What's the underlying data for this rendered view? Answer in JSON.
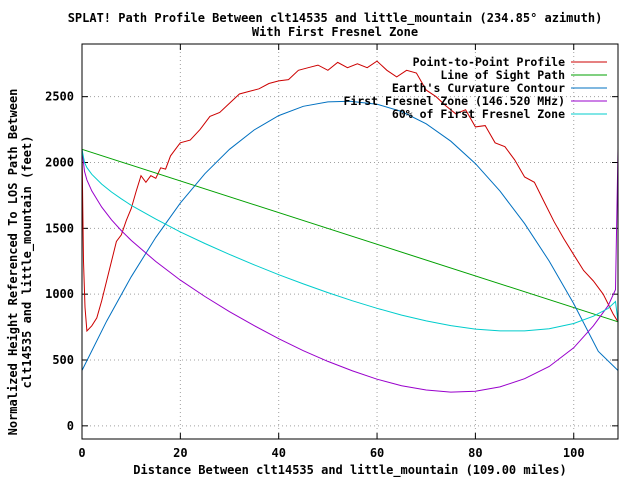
{
  "chart_data": {
    "type": "line",
    "title": "SPLAT! Path Profile Between clt14535 and little_mountain (234.85° azimuth)",
    "subtitle": "With First Fresnel Zone",
    "xlabel": "Distance Between clt14535 and little_mountain (109.00 miles)",
    "ylabel_line1": "Normalized Height Referenced To LOS Path Between",
    "ylabel_line2": "clt14535 and little_mountain (feet)",
    "xlim": [
      0,
      109
    ],
    "ylim": [
      -100,
      2900
    ],
    "x_ticks": [
      0,
      20,
      40,
      60,
      80,
      100
    ],
    "y_ticks": [
      0,
      500,
      1000,
      1500,
      2000,
      2500
    ],
    "grid": true,
    "legend_position": "top-right",
    "series": [
      {
        "name": "Point-to-Point Profile",
        "color": "#cc0000",
        "x": [
          0,
          0.3,
          0.6,
          1,
          2,
          3,
          4,
          5,
          6,
          7,
          8,
          9,
          10,
          11,
          12,
          13,
          14,
          15,
          16,
          17,
          18,
          19,
          20,
          22,
          24,
          26,
          28,
          30,
          32,
          34,
          36,
          38,
          40,
          42,
          44,
          46,
          48,
          50,
          52,
          54,
          56,
          58,
          60,
          62,
          64,
          66,
          68,
          70,
          72,
          74,
          76,
          78,
          80,
          82,
          84,
          86,
          88,
          90,
          92,
          94,
          96,
          98,
          100,
          102,
          104,
          106,
          108,
          109
        ],
        "values": [
          2100,
          1250,
          900,
          720,
          760,
          820,
          950,
          1100,
          1250,
          1400,
          1450,
          1560,
          1650,
          1780,
          1900,
          1850,
          1900,
          1880,
          1960,
          1950,
          2050,
          2100,
          2150,
          2170,
          2250,
          2350,
          2380,
          2450,
          2520,
          2540,
          2560,
          2600,
          2620,
          2630,
          2700,
          2720,
          2740,
          2700,
          2760,
          2720,
          2750,
          2720,
          2770,
          2700,
          2650,
          2700,
          2680,
          2550,
          2500,
          2430,
          2370,
          2400,
          2270,
          2280,
          2150,
          2120,
          2020,
          1890,
          1850,
          1700,
          1550,
          1420,
          1300,
          1180,
          1100,
          1000,
          850,
          790
        ]
      },
      {
        "name": "Line of Sight Path",
        "color": "#00a000",
        "x": [
          0,
          109
        ],
        "values": [
          2100,
          790
        ]
      },
      {
        "name": "Earth's Curvature Contour",
        "color": "#0070c0",
        "x": [
          0,
          5,
          10,
          15,
          20,
          25,
          30,
          35,
          40,
          45,
          50,
          54.5,
          60,
          65,
          70,
          75,
          80,
          85,
          90,
          95,
          100,
          105,
          109
        ],
        "values": [
          420,
          795,
          1132,
          1431,
          1692,
          1915,
          2100,
          2247,
          2356,
          2427,
          2460,
          2465,
          2443,
          2387,
          2294,
          2162,
          1992,
          1783,
          1536,
          1251,
          928,
          566,
          420
        ]
      },
      {
        "name": "First Fresnel Zone (146.520 MHz)",
        "color": "#9900cc",
        "x": [
          0,
          0.5,
          1,
          2,
          4,
          6,
          8,
          10,
          15,
          20,
          25,
          30,
          35,
          40,
          45,
          50,
          55,
          60,
          65,
          70,
          75,
          80,
          85,
          90,
          95,
          100,
          104,
          107,
          108.5,
          109
        ],
        "values": [
          2100,
          1933,
          1868,
          1784,
          1661,
          1565,
          1483,
          1408,
          1248,
          1107,
          982,
          867,
          761,
          662,
          571,
          489,
          417,
          354,
          305,
          272,
          256,
          262,
          296,
          358,
          451,
          593,
          760,
          913,
          1035,
          2100
        ]
      },
      {
        "name": "60% of First Fresnel Zone",
        "color": "#00cccc",
        "x": [
          0,
          0.5,
          1,
          2,
          4,
          6,
          8,
          10,
          15,
          20,
          25,
          30,
          35,
          40,
          45,
          50,
          55,
          60,
          65,
          70,
          75,
          80,
          85,
          90,
          95,
          100,
          104,
          107,
          108.5,
          109
        ],
        "values": [
          2100,
          2000,
          1961,
          1910,
          1836,
          1776,
          1724,
          1675,
          1570,
          1473,
          1385,
          1302,
          1223,
          1148,
          1078,
          1012,
          950,
          893,
          841,
          797,
          761,
          735,
          721,
          721,
          737,
          777,
          833,
          892,
          944,
          790
        ]
      }
    ]
  }
}
